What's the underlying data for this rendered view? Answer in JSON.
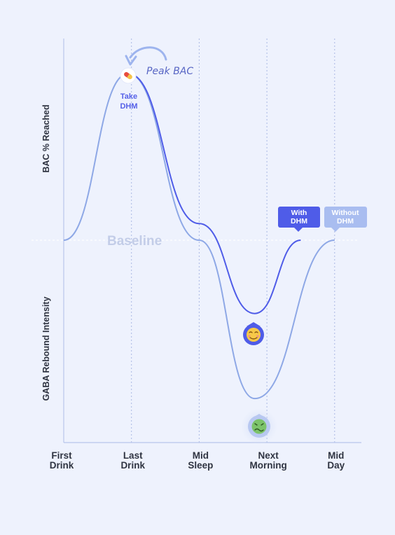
{
  "chart_data": {
    "type": "line",
    "ylabel_top": "BAC % Reached",
    "ylabel_bottom": "GABA Rebound Intensity",
    "baseline_label": "Baseline",
    "x_ticks": [
      {
        "line1": "First",
        "line2": "Drink"
      },
      {
        "line1": "Last",
        "line2": "Drink"
      },
      {
        "line1": "Mid",
        "line2": "Sleep"
      },
      {
        "line1": "Next",
        "line2": "Morning"
      },
      {
        "line1": "Mid",
        "line2": "Day"
      }
    ],
    "xlim": [
      0,
      4
    ],
    "ylim": [
      -1.0,
      1.0
    ],
    "grid": "vertical-dotted",
    "series": [
      {
        "name": "Without DHM",
        "label_line1": "Without",
        "label_line2": "DHM",
        "color": "#8ea8e6",
        "points": [
          [
            0,
            0
          ],
          [
            0.95,
            1.0
          ],
          [
            2.0,
            0.0
          ],
          [
            2.82,
            -0.95
          ],
          [
            4.0,
            0.0
          ]
        ]
      },
      {
        "name": "With DHM",
        "label_line1": "With",
        "label_line2": "DHM",
        "color": "#4f5ce8",
        "points": [
          [
            0.95,
            1.0
          ],
          [
            2.0,
            0.1
          ],
          [
            2.82,
            -0.44
          ],
          [
            3.5,
            0.0
          ]
        ]
      }
    ],
    "annotations": {
      "peak": "Peak BAC",
      "take_line1": "Take",
      "take_line2": "DHM",
      "with_face": "smiling-face-icon",
      "without_face": "nauseated-face-icon",
      "pill": "pill-icon"
    }
  },
  "colors": {
    "background": "#eef2fd",
    "with_dhm": "#4f5ce8",
    "without_dhm": "#8ea8e6",
    "without_tag": "#a9bdf0",
    "axis": "#b9c6ec",
    "baseline_text": "#c3cde8"
  }
}
